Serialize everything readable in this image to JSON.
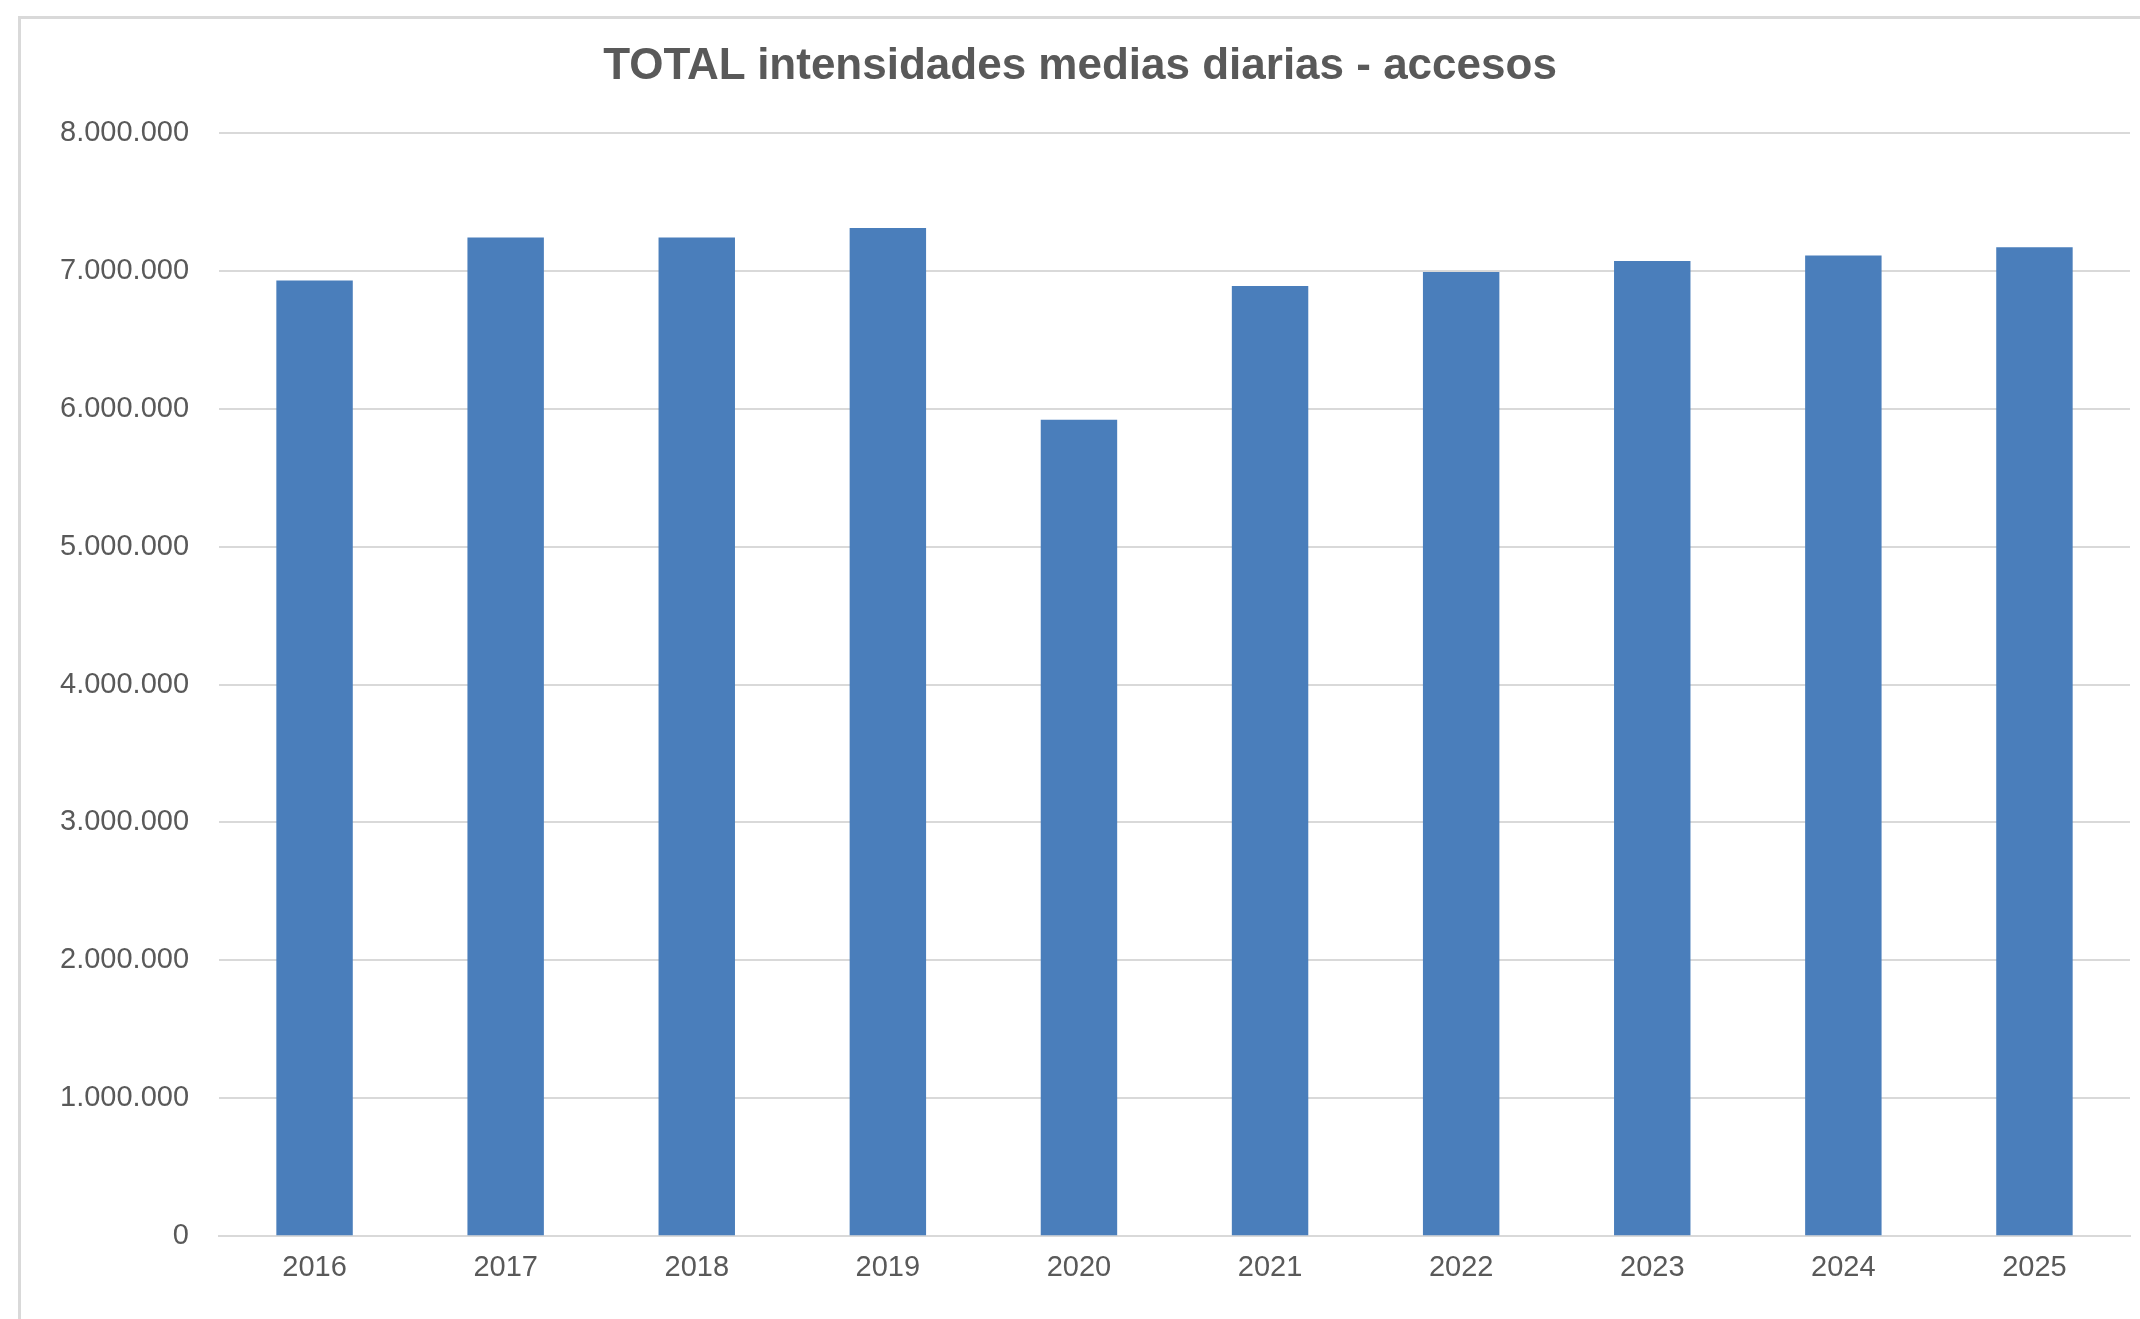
{
  "chart_data": {
    "type": "bar",
    "title": "TOTAL intensidades medias diarias - accesos",
    "categories": [
      "2016",
      "2017",
      "2018",
      "2019",
      "2020",
      "2021",
      "2022",
      "2023",
      "2024",
      "2025"
    ],
    "values": [
      6930000,
      7240000,
      7240000,
      7310000,
      5920000,
      6890000,
      6990000,
      7070000,
      7110000,
      7170000
    ],
    "color": "#4a7ebb",
    "ylim": [
      0,
      8000000
    ],
    "yticks": [
      0,
      {
        "value": 1000000,
        "label": "1.000.000"
      },
      {
        "value": 2000000,
        "label": "2.000.000"
      },
      {
        "value": 3000000,
        "label": "3.000.000"
      },
      {
        "value": 4000000,
        "label": "4.000.000"
      },
      {
        "value": 5000000,
        "label": "5.000.000"
      },
      {
        "value": 6000000,
        "label": "6.000.000"
      },
      {
        "value": 7000000,
        "label": "7.000.000"
      },
      {
        "value": 8000000,
        "label": "8.000.000"
      }
    ],
    "grid": "y"
  }
}
